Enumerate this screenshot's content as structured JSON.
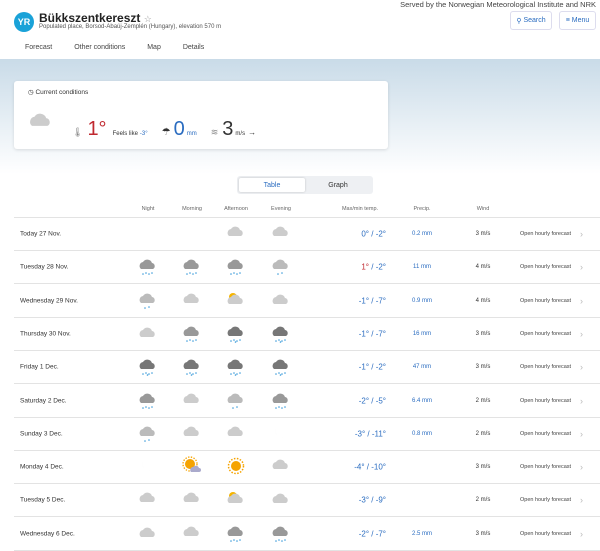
{
  "header": {
    "served_by": "Served by the Norwegian Meteorological Institute and NRK",
    "logo": "YR",
    "place": "Bükkszentkereszt",
    "place_info": "Populated place, Borsod-Abaúj-Zemplén (Hungary), elevation 570 m",
    "search_label": "Search",
    "menu_label": "Menu"
  },
  "tabs": [
    {
      "label": "Forecast",
      "active": true
    },
    {
      "label": "Other conditions"
    },
    {
      "label": "Map"
    },
    {
      "label": "Details"
    }
  ],
  "current": {
    "label": "Current conditions",
    "icon": "cloudy",
    "temp": "1°",
    "feels_label": "Feels like",
    "feels_value": "-3°",
    "precip": "0",
    "precip_unit": "mm",
    "wind": "3",
    "wind_unit": "m/s",
    "wind_arrow": "→"
  },
  "view_toggle": {
    "table": "Table",
    "graph": "Graph",
    "selected": "Table"
  },
  "columns": {
    "night": "Night",
    "morning": "Morning",
    "afternoon": "Afternoon",
    "evening": "Evening",
    "temp": "Max/min temp.",
    "precip": "Precip.",
    "wind": "Wind"
  },
  "colors": {
    "accent": "#2a6cc0",
    "warm": "#c0282f",
    "logo": "#1aa2d8"
  },
  "rows": [
    {
      "day": "Today 27 Nov.",
      "icons": [
        "",
        "",
        "cloud",
        "cloud"
      ],
      "max": "0°",
      "min": "-2°",
      "precip": "0.2 mm",
      "wind": "3 m/s"
    },
    {
      "day": "Tuesday 28 Nov.",
      "icons": [
        "sleet",
        "sleet",
        "sleet",
        "light-sleet"
      ],
      "max": "1°",
      "min": "-2°",
      "warm": true,
      "precip": "11 mm",
      "wind": "4 m/s"
    },
    {
      "day": "Wednesday 29 Nov.",
      "icons": [
        "light-sleet",
        "cloud",
        "partly-cloudy-day",
        "partly-cloudy-night"
      ],
      "max": "-1°",
      "min": "-7°",
      "precip": "0.9 mm",
      "wind": "4 m/s"
    },
    {
      "day": "Thursday 30 Nov.",
      "icons": [
        "partly-cloudy-night",
        "sleet",
        "heavy-sleet",
        "heavy-sleet"
      ],
      "max": "-1°",
      "min": "-7°",
      "precip": "16 mm",
      "wind": "3 m/s"
    },
    {
      "day": "Friday 1 Dec.",
      "icons": [
        "heavy-sleet",
        "heavy-sleet",
        "heavy-sleet",
        "heavy-sleet"
      ],
      "max": "-1°",
      "min": "-2°",
      "precip": "47 mm",
      "wind": "3 m/s"
    },
    {
      "day": "Saturday 2 Dec.",
      "icons": [
        "sleet",
        "cloud",
        "light-sleet",
        "sleet"
      ],
      "max": "-2°",
      "min": "-5°",
      "precip": "6.4 mm",
      "wind": "2 m/s"
    },
    {
      "day": "Sunday 3 Dec.",
      "icons": [
        "light-sleet",
        "cloud",
        "cloud",
        "moon"
      ],
      "max": "-3°",
      "min": "-11°",
      "precip": "0.8 mm",
      "wind": "2 m/s"
    },
    {
      "day": "Monday 4 Dec.",
      "icons": [
        "moon",
        "fair-day",
        "sun",
        "cloud"
      ],
      "max": "-4°",
      "min": "-10°",
      "precip": "",
      "wind": "3 m/s"
    },
    {
      "day": "Tuesday 5 Dec.",
      "icons": [
        "cloud",
        "cloud",
        "partly-cloudy-day",
        "partly-cloudy-night"
      ],
      "max": "-3°",
      "min": "-9°",
      "precip": "",
      "wind": "2 m/s"
    },
    {
      "day": "Wednesday 6 Dec.",
      "icons": [
        "partly-cloudy-night",
        "cloud",
        "sleet",
        "sleet"
      ],
      "max": "-2°",
      "min": "-7°",
      "precip": "2.5 mm",
      "wind": "3 m/s"
    }
  ],
  "open_hourly": "Open hourly forecast"
}
